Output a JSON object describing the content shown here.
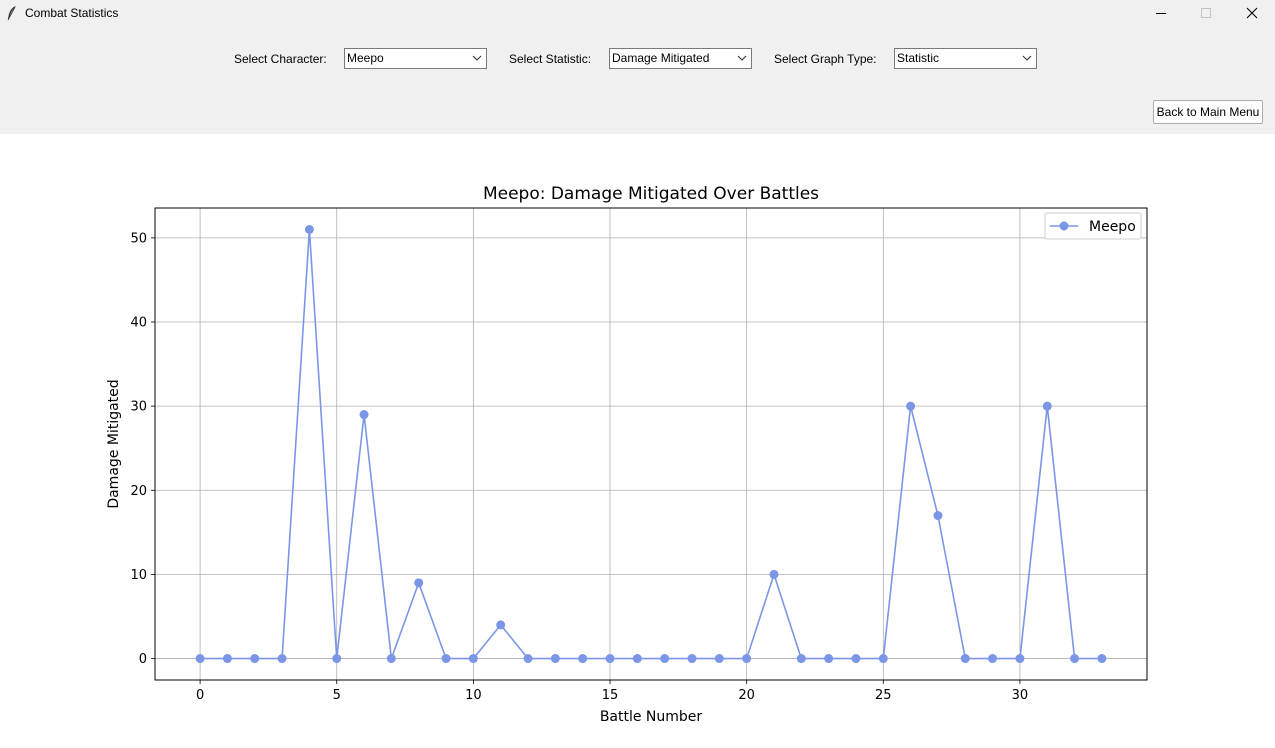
{
  "window": {
    "title": "Combat Statistics",
    "icons": {
      "app": "feather-icon",
      "minimize": "minimize-icon",
      "maximize": "maximize-icon",
      "close": "close-icon"
    }
  },
  "controls": {
    "character_label": "Select Character:",
    "character_value": "Meepo",
    "statistic_label": "Select Statistic:",
    "statistic_value": "Damage Mitigated",
    "graph_type_label": "Select Graph Type:",
    "graph_type_value": "Statistic",
    "back_button": "Back to Main Menu"
  },
  "colors": {
    "line": "#7b96e6",
    "chrome_background": "#f0f0f0"
  },
  "chart_data": {
    "type": "line",
    "title": "Meepo: Damage Mitigated Over Battles",
    "xlabel": "Battle Number",
    "ylabel": "Damage Mitigated",
    "xlim": [
      -1.65,
      34.65
    ],
    "ylim": [
      -2.55,
      53.55
    ],
    "xticks": [
      0,
      5,
      10,
      15,
      20,
      25,
      30
    ],
    "yticks": [
      0,
      10,
      20,
      30,
      40,
      50
    ],
    "grid": true,
    "legend_position": "top-right",
    "series": [
      {
        "name": "Meepo",
        "marker": "circle",
        "x": [
          0,
          1,
          2,
          3,
          4,
          5,
          6,
          7,
          8,
          9,
          10,
          11,
          12,
          13,
          14,
          15,
          16,
          17,
          18,
          19,
          20,
          21,
          22,
          23,
          24,
          25,
          26,
          27,
          28,
          29,
          30,
          31,
          32,
          33
        ],
        "values": [
          0,
          0,
          0,
          0,
          51,
          0,
          29,
          0,
          9,
          0,
          0,
          4,
          0,
          0,
          0,
          0,
          0,
          0,
          0,
          0,
          0,
          10,
          0,
          0,
          0,
          0,
          30,
          17,
          0,
          0,
          0,
          30,
          0,
          0
        ]
      }
    ]
  }
}
